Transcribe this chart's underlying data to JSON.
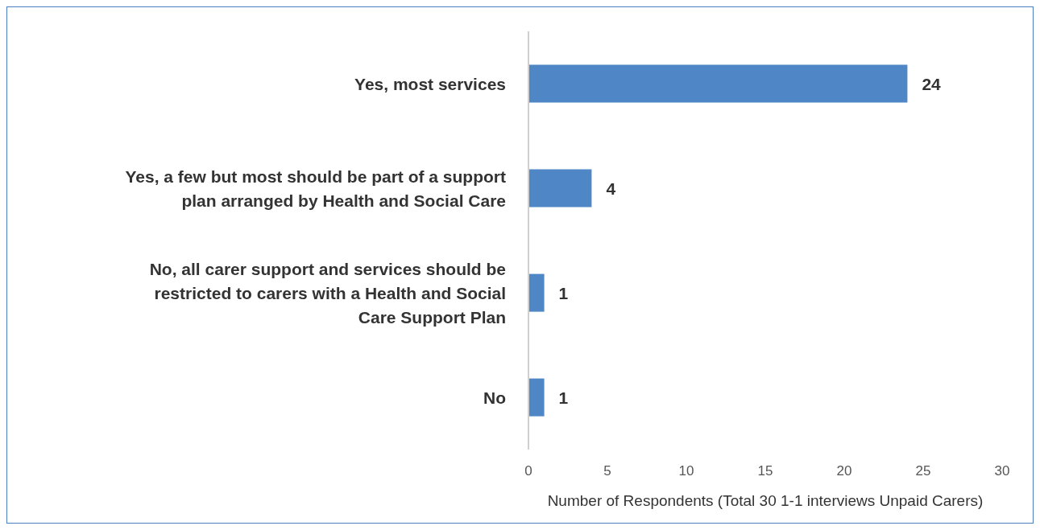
{
  "chart_data": {
    "type": "bar",
    "orientation": "horizontal",
    "categories": [
      "Yes, most services",
      "Yes, a few but most should be part of a support plan arranged by Health and Social Care",
      "No, all carer support and services should be restricted to carers with a Health and Social Care Support Plan",
      "No"
    ],
    "values": [
      24,
      4,
      1,
      1
    ],
    "color": "#4f86c6",
    "xlim": [
      0,
      30
    ],
    "xticks": [
      0,
      5,
      10,
      15,
      20,
      25,
      30
    ],
    "xlabel": "Number of Respondents (Total 30 1-1 interviews Unpaid Carers)",
    "data_labels": true,
    "grid": false,
    "legend": false
  }
}
